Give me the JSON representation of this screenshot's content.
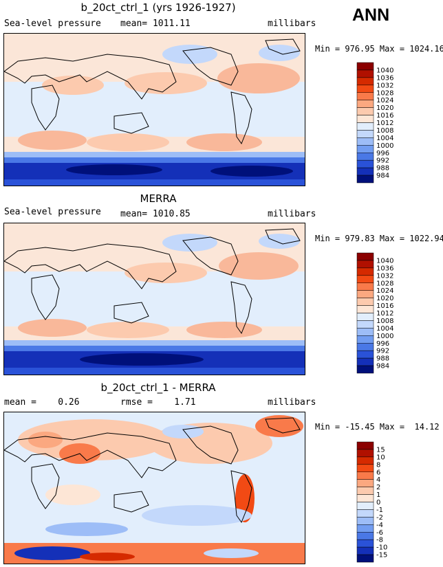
{
  "header": {
    "season": "ANN"
  },
  "panels": [
    {
      "id": "model",
      "title": "b_20ct_ctrl_1 (yrs 1926-1927)",
      "left_label": "Sea-level pressure",
      "center_label": "mean= 1011.11",
      "units": "millibars",
      "minmax": "Min = 976.95 Max = 1024.16"
    },
    {
      "id": "obs",
      "title": "MERRA",
      "left_label": "Sea-level pressure",
      "center_label": "mean= 1010.85",
      "units": "millibars",
      "minmax": "Min = 979.83 Max = 1022.94"
    },
    {
      "id": "diff",
      "title": "b_20ct_ctrl_1 - MERRA",
      "left_label": "mean =    0.26",
      "center_label": "rmse =    1.71",
      "units": "millibars",
      "minmax": "Min = -15.45 Max =  14.12"
    }
  ],
  "colorbars": {
    "abs": {
      "labels": [
        "1040",
        "1036",
        "1032",
        "1028",
        "1024",
        "1020",
        "1016",
        "1012",
        "1008",
        "1004",
        "1000",
        "996",
        "992",
        "988",
        "984"
      ],
      "colors": [
        "#8b0000",
        "#b01000",
        "#d52a00",
        "#f24a14",
        "#f97a4a",
        "#fba880",
        "#fccaae",
        "#fde6d6",
        "#e2eefc",
        "#c3d8fb",
        "#9dbdf7",
        "#729df1",
        "#4a78e6",
        "#2a52d8",
        "#1430b8",
        "#00107a"
      ]
    },
    "diff": {
      "labels": [
        "15",
        "10",
        "8",
        "6",
        "4",
        "2",
        "1",
        "0",
        "-1",
        "-2",
        "-4",
        "-6",
        "-8",
        "-10",
        "-15"
      ],
      "colors": [
        "#8b0000",
        "#b01000",
        "#d52a00",
        "#f24a14",
        "#f97a4a",
        "#fba880",
        "#fccaae",
        "#fde6d6",
        "#e2eefc",
        "#c3d8fb",
        "#9dbdf7",
        "#729df1",
        "#4a78e6",
        "#2a52d8",
        "#1430b8",
        "#00107a"
      ]
    }
  }
}
